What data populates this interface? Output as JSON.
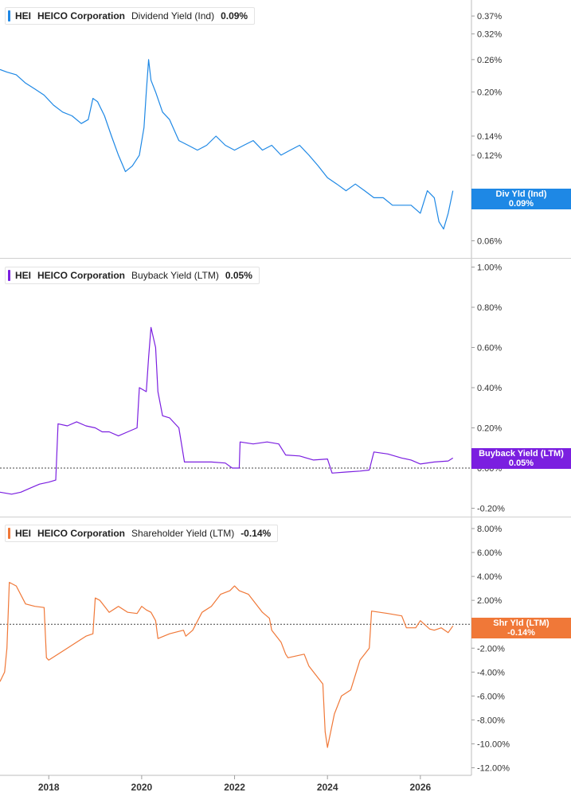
{
  "chart_data": [
    {
      "type": "line",
      "ticker": "HEI",
      "company": "HEICO Corporation",
      "metric": "Dividend Yield (Ind)",
      "current_value": "0.09%",
      "color": "#1e88e5",
      "scale": "log",
      "ylim": [
        0.055,
        0.4
      ],
      "y_ticks": [
        0.37,
        0.32,
        0.26,
        0.2,
        0.14,
        0.12,
        0.06
      ],
      "y_tick_labels": [
        "0.37%",
        "0.32%",
        "0.26%",
        "0.20%",
        "0.14%",
        "0.12%",
        "0.06%"
      ],
      "end_tag": {
        "label": "Div Yld (Ind)",
        "value": "0.09%"
      },
      "series": [
        {
          "x": [
            2016.95,
            2017.1,
            2017.3,
            2017.5,
            2017.7,
            2017.9,
            2018.1,
            2018.3,
            2018.5,
            2018.7,
            2018.85,
            2018.95,
            2019.05,
            2019.2,
            2019.35,
            2019.5,
            2019.65,
            2019.8,
            2019.95,
            2020.05,
            2020.1,
            2020.15,
            2020.2,
            2020.3,
            2020.45,
            2020.6,
            2020.8,
            2021.0,
            2021.2,
            2021.4,
            2021.6,
            2021.8,
            2022.0,
            2022.2,
            2022.4,
            2022.6,
            2022.8,
            2023.0,
            2023.2,
            2023.4,
            2023.6,
            2023.8,
            2024.0,
            2024.2,
            2024.4,
            2024.6,
            2024.8,
            2025.0,
            2025.2,
            2025.4,
            2025.6,
            2025.8,
            2026.0,
            2026.15,
            2026.3,
            2026.4,
            2026.5,
            2026.6,
            2026.7
          ],
          "y": [
            0.24,
            0.235,
            0.23,
            0.215,
            0.205,
            0.195,
            0.18,
            0.17,
            0.165,
            0.155,
            0.16,
            0.19,
            0.185,
            0.165,
            0.14,
            0.12,
            0.105,
            0.11,
            0.12,
            0.15,
            0.2,
            0.26,
            0.22,
            0.2,
            0.17,
            0.16,
            0.135,
            0.13,
            0.125,
            0.13,
            0.14,
            0.13,
            0.125,
            0.13,
            0.135,
            0.125,
            0.13,
            0.12,
            0.125,
            0.13,
            0.12,
            0.11,
            0.1,
            0.095,
            0.09,
            0.095,
            0.09,
            0.085,
            0.085,
            0.08,
            0.08,
            0.08,
            0.075,
            0.09,
            0.085,
            0.07,
            0.066,
            0.075,
            0.09
          ]
        }
      ]
    },
    {
      "type": "line",
      "ticker": "HEI",
      "company": "HEICO Corporation",
      "metric": "Buyback Yield (LTM)",
      "current_value": "0.05%",
      "color": "#7b1fe0",
      "scale": "linear",
      "ylim": [
        -0.21,
        1.01
      ],
      "y_ticks": [
        1.0,
        0.8,
        0.6,
        0.4,
        0.2,
        0.0,
        -0.2
      ],
      "y_tick_labels": [
        "1.00%",
        "0.80%",
        "0.60%",
        "0.40%",
        "0.20%",
        "0.00%",
        "-0.20%"
      ],
      "zero_line": true,
      "end_tag": {
        "label": "Buyback Yield (LTM)",
        "value": "0.05%"
      },
      "series": [
        {
          "x": [
            2016.95,
            2017.2,
            2017.4,
            2017.6,
            2017.8,
            2018.0,
            2018.15,
            2018.2,
            2018.4,
            2018.6,
            2018.8,
            2019.0,
            2019.15,
            2019.3,
            2019.5,
            2019.7,
            2019.9,
            2019.95,
            2020.1,
            2020.15,
            2020.2,
            2020.3,
            2020.35,
            2020.45,
            2020.6,
            2020.8,
            2020.92,
            2021.2,
            2021.5,
            2021.8,
            2021.95,
            2022.1,
            2022.12,
            2022.4,
            2022.7,
            2022.95,
            2023.1,
            2023.4,
            2023.7,
            2024.0,
            2024.1,
            2024.4,
            2024.7,
            2024.9,
            2025.0,
            2025.3,
            2025.6,
            2025.8,
            2026.0,
            2026.3,
            2026.6,
            2026.7
          ],
          "y": [
            -0.12,
            -0.13,
            -0.12,
            -0.1,
            -0.08,
            -0.07,
            -0.06,
            0.22,
            0.21,
            0.23,
            0.21,
            0.2,
            0.18,
            0.18,
            0.16,
            0.18,
            0.2,
            0.4,
            0.38,
            0.55,
            0.7,
            0.6,
            0.38,
            0.26,
            0.25,
            0.2,
            0.03,
            0.03,
            0.03,
            0.025,
            0.0,
            0.0,
            0.13,
            0.12,
            0.13,
            0.12,
            0.065,
            0.06,
            0.04,
            0.045,
            -0.025,
            -0.02,
            -0.015,
            -0.01,
            0.08,
            0.07,
            0.05,
            0.04,
            0.02,
            0.03,
            0.035,
            0.05
          ]
        }
      ]
    },
    {
      "type": "line",
      "ticker": "HEI",
      "company": "HEICO Corporation",
      "metric": "Shareholder Yield (LTM)",
      "current_value": "-0.14%",
      "color": "#f07838",
      "scale": "linear",
      "ylim": [
        -12.1,
        8.4
      ],
      "y_ticks": [
        8,
        6,
        4,
        2,
        0,
        -2,
        -4,
        -6,
        -8,
        -10,
        -12
      ],
      "y_tick_labels": [
        "8.00%",
        "6.00%",
        "4.00%",
        "2.00%",
        "0.00%",
        "-2.00%",
        "-4.00%",
        "-6.00%",
        "-8.00%",
        "-10.00%",
        "-12.00%"
      ],
      "zero_line": true,
      "end_tag": {
        "label": "Shr Yld (LTM)",
        "value": "-0.14%"
      },
      "series": [
        {
          "x": [
            2016.95,
            2017.05,
            2017.1,
            2017.15,
            2017.3,
            2017.5,
            2017.7,
            2017.9,
            2017.95,
            2018.0,
            2018.2,
            2018.4,
            2018.6,
            2018.8,
            2018.95,
            2019.0,
            2019.1,
            2019.3,
            2019.5,
            2019.7,
            2019.9,
            2020.0,
            2020.1,
            2020.2,
            2020.3,
            2020.35,
            2020.6,
            2020.9,
            2020.95,
            2021.1,
            2021.3,
            2021.5,
            2021.7,
            2021.9,
            2022.0,
            2022.1,
            2022.3,
            2022.5,
            2022.6,
            2022.75,
            2022.8,
            2023.0,
            2023.1,
            2023.15,
            2023.5,
            2023.6,
            2023.7,
            2023.9,
            2023.95,
            2024.0,
            2024.15,
            2024.3,
            2024.5,
            2024.7,
            2024.8,
            2024.9,
            2024.95,
            2025.3,
            2025.6,
            2025.7,
            2025.9,
            2026.0,
            2026.2,
            2026.3,
            2026.45,
            2026.6,
            2026.7
          ],
          "y": [
            -4.8,
            -4.0,
            -2.0,
            3.5,
            3.2,
            1.7,
            1.5,
            1.4,
            -2.8,
            -3.0,
            -2.5,
            -2.0,
            -1.5,
            -1.0,
            -0.8,
            2.2,
            2.0,
            1.0,
            1.5,
            1.0,
            0.9,
            1.5,
            1.2,
            1.0,
            0.3,
            -1.2,
            -0.8,
            -0.5,
            -1.0,
            -0.5,
            1.0,
            1.5,
            2.5,
            2.8,
            3.2,
            2.8,
            2.5,
            1.5,
            1.0,
            0.5,
            -0.5,
            -1.5,
            -2.5,
            -2.8,
            -2.5,
            -3.5,
            -4.0,
            -5.0,
            -9.0,
            -10.3,
            -7.5,
            -6.0,
            -5.5,
            -3.0,
            -2.5,
            -2.0,
            1.1,
            0.9,
            0.7,
            -0.3,
            -0.3,
            0.3,
            -0.4,
            -0.5,
            -0.3,
            -0.7,
            -0.14
          ]
        }
      ]
    }
  ],
  "x_axis": {
    "ticks": [
      2018,
      2020,
      2022,
      2024,
      2026
    ],
    "tick_labels": [
      "2018",
      "2020",
      "2022",
      "2024",
      "2026"
    ],
    "range": [
      2016.95,
      2027.1
    ]
  }
}
